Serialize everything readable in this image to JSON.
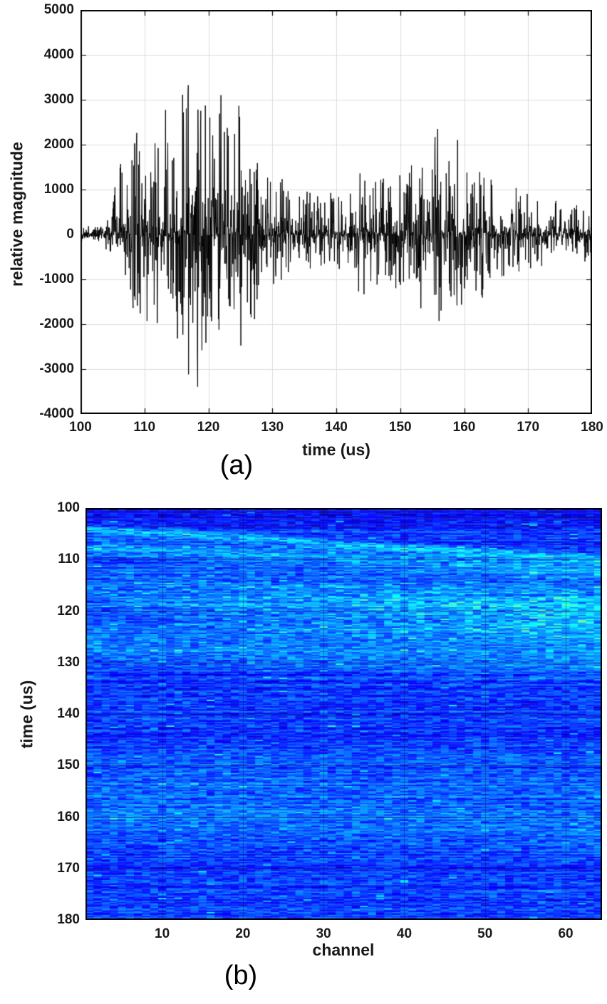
{
  "page": {
    "background": "#ffffff"
  },
  "figure_a": {
    "caption": "(a)",
    "xlabel": "time (us)",
    "ylabel": "relative magnitude"
  },
  "figure_b": {
    "caption": "(b)",
    "xlabel": "channel",
    "ylabel": "time (us)"
  },
  "chart_data": [
    {
      "id": "waveform",
      "type": "line",
      "title": "",
      "xlabel": "time (us)",
      "ylabel": "relative magnitude",
      "xlim": [
        100,
        180
      ],
      "ylim": [
        -4000,
        5000
      ],
      "x_ticks": [
        100,
        110,
        120,
        130,
        140,
        150,
        160,
        170,
        180
      ],
      "y_ticks": [
        -4000,
        -3000,
        -2000,
        -1000,
        0,
        1000,
        2000,
        3000,
        4000,
        5000
      ],
      "grid": true,
      "line_color": "#000000",
      "grid_color": "#dcdcdc",
      "series_note": "burst acoustic-emission style waveform; amplitude envelope keypoints [time_us, peak_relative_magnitude]",
      "envelope": [
        [
          100,
          120
        ],
        [
          103,
          200
        ],
        [
          105,
          700
        ],
        [
          106,
          1700
        ],
        [
          108,
          1900
        ],
        [
          109,
          2600
        ],
        [
          111,
          2200
        ],
        [
          113,
          2900
        ],
        [
          115,
          2700
        ],
        [
          116,
          3300
        ],
        [
          117,
          3850
        ],
        [
          118,
          3950
        ],
        [
          119,
          4050
        ],
        [
          120,
          3000
        ],
        [
          121,
          2700
        ],
        [
          122,
          3300
        ],
        [
          123,
          2500
        ],
        [
          124,
          2400
        ],
        [
          125,
          3200
        ],
        [
          126,
          2400
        ],
        [
          127,
          2300
        ],
        [
          128,
          1700
        ],
        [
          129,
          2950
        ],
        [
          130,
          2600
        ],
        [
          131,
          1500
        ],
        [
          132,
          1100
        ],
        [
          133,
          1000
        ],
        [
          134,
          800
        ],
        [
          135,
          900
        ],
        [
          136,
          1000
        ],
        [
          137,
          950
        ],
        [
          138,
          1050
        ],
        [
          139,
          900
        ],
        [
          140,
          950
        ],
        [
          141,
          800
        ],
        [
          142,
          900
        ],
        [
          143,
          1100
        ],
        [
          144,
          1800
        ],
        [
          145,
          1300
        ],
        [
          146,
          1200
        ],
        [
          147,
          1600
        ],
        [
          148,
          1200
        ],
        [
          149,
          1400
        ],
        [
          150,
          1500
        ],
        [
          151,
          1300
        ],
        [
          152,
          1700
        ],
        [
          153,
          2350
        ],
        [
          154,
          1600
        ],
        [
          155,
          1900
        ],
        [
          156,
          2800
        ],
        [
          157,
          1800
        ],
        [
          158,
          2400
        ],
        [
          159,
          2300
        ],
        [
          160,
          1700
        ],
        [
          161,
          1400
        ],
        [
          162,
          1600
        ],
        [
          163,
          1700
        ],
        [
          164,
          1200
        ],
        [
          165,
          1100
        ],
        [
          166,
          1300
        ],
        [
          167,
          1000
        ],
        [
          168,
          1100
        ],
        [
          169,
          900
        ],
        [
          170,
          1000
        ],
        [
          171,
          900
        ],
        [
          172,
          800
        ],
        [
          173,
          850
        ],
        [
          174,
          750
        ],
        [
          175,
          800
        ],
        [
          176,
          700
        ],
        [
          177,
          750
        ],
        [
          178,
          650
        ],
        [
          179,
          700
        ],
        [
          180,
          550
        ]
      ],
      "neg_scale": 0.86,
      "samples": 1800,
      "seed": 42
    },
    {
      "id": "channel-time-map",
      "type": "heatmap",
      "xlabel": "channel",
      "ylabel": "time (us)",
      "xlim": [
        1,
        64
      ],
      "ylim": [
        100,
        180
      ],
      "x_ticks": [
        10,
        20,
        30,
        40,
        50,
        60
      ],
      "y_ticks": [
        100,
        110,
        120,
        130,
        140,
        150,
        160,
        170,
        180
      ],
      "y_direction": "down",
      "colormap": "jet",
      "value_range": [
        0,
        1
      ],
      "base_level": 0.15,
      "noise": 0.14,
      "rows": 320,
      "cols": 64,
      "seed": 7,
      "grid_overlay_color": "rgba(0,0,0,0.35)",
      "bands": [
        {
          "t_left": 104.0,
          "t_right": 110.0,
          "sigma": 0.6,
          "strength": 0.2,
          "note": "early thin arrival arc"
        },
        {
          "t_left": 107.5,
          "t_right": 112.0,
          "sigma": 1.2,
          "strength": 0.14
        },
        {
          "t_left": 117.0,
          "t_right": 121.0,
          "sigma": 4.5,
          "strength": 0.22,
          "right_weight": 0.65,
          "fleck": 0.22,
          "note": "main bright energy band, stronger toward high channels"
        },
        {
          "t_left": 127.0,
          "t_right": 130.0,
          "sigma": 2.5,
          "strength": 0.1
        },
        {
          "t_left": 152.0,
          "t_right": 153.0,
          "sigma": 3.0,
          "strength": 0.06
        },
        {
          "t_left": 160.0,
          "t_right": 162.0,
          "sigma": 3.0,
          "strength": 0.09
        }
      ]
    }
  ]
}
